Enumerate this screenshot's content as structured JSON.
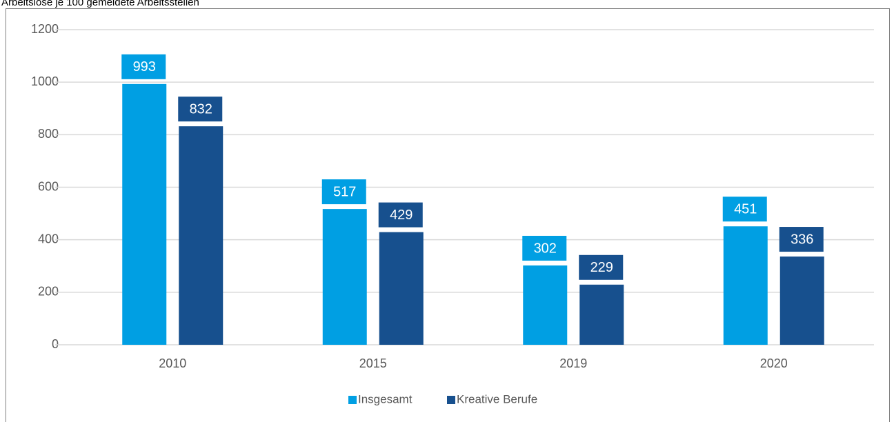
{
  "chart_data": {
    "type": "bar",
    "title": "Arbeitslose je 100 gemeldete Arbeitsstellen",
    "categories": [
      "2010",
      "2015",
      "2019",
      "2020"
    ],
    "series": [
      {
        "name": "Insgesamt",
        "color": "#009fe3",
        "values": [
          993,
          517,
          302,
          451
        ]
      },
      {
        "name": "Kreative Berufe",
        "color": "#17508e",
        "values": [
          832,
          429,
          229,
          336
        ]
      }
    ],
    "ylim": [
      0,
      1200
    ],
    "yticks": [
      0,
      200,
      400,
      600,
      800,
      1000,
      1200
    ],
    "grid": true,
    "legend": "bottom"
  }
}
